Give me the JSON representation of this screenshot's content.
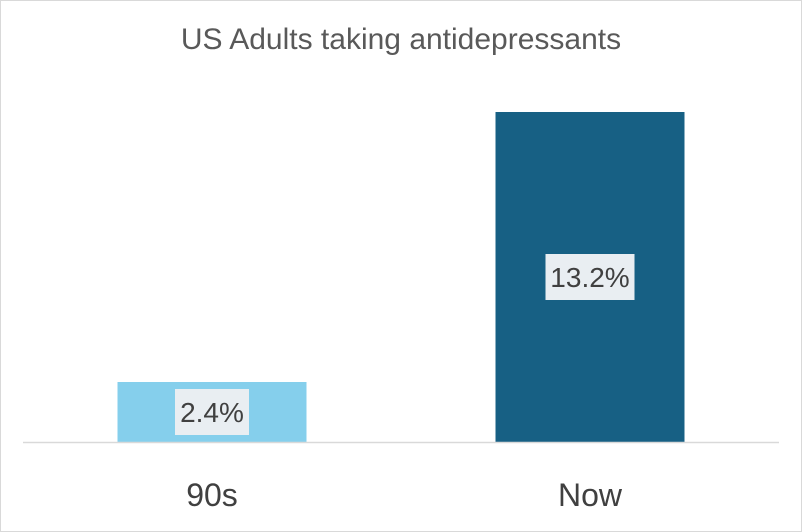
{
  "chart_data": {
    "type": "bar",
    "title": "US Adults taking antidepressants",
    "categories": [
      "90s",
      "Now"
    ],
    "values": [
      2.4,
      13.2
    ],
    "data_labels": [
      "2.4%",
      "13.2%"
    ],
    "unit": "%",
    "ylim": [
      0,
      13.2
    ],
    "grid": false,
    "legend": "none",
    "bar_colors": [
      "#85cfec",
      "#176084"
    ],
    "data_label_background": "#e9eef2"
  }
}
